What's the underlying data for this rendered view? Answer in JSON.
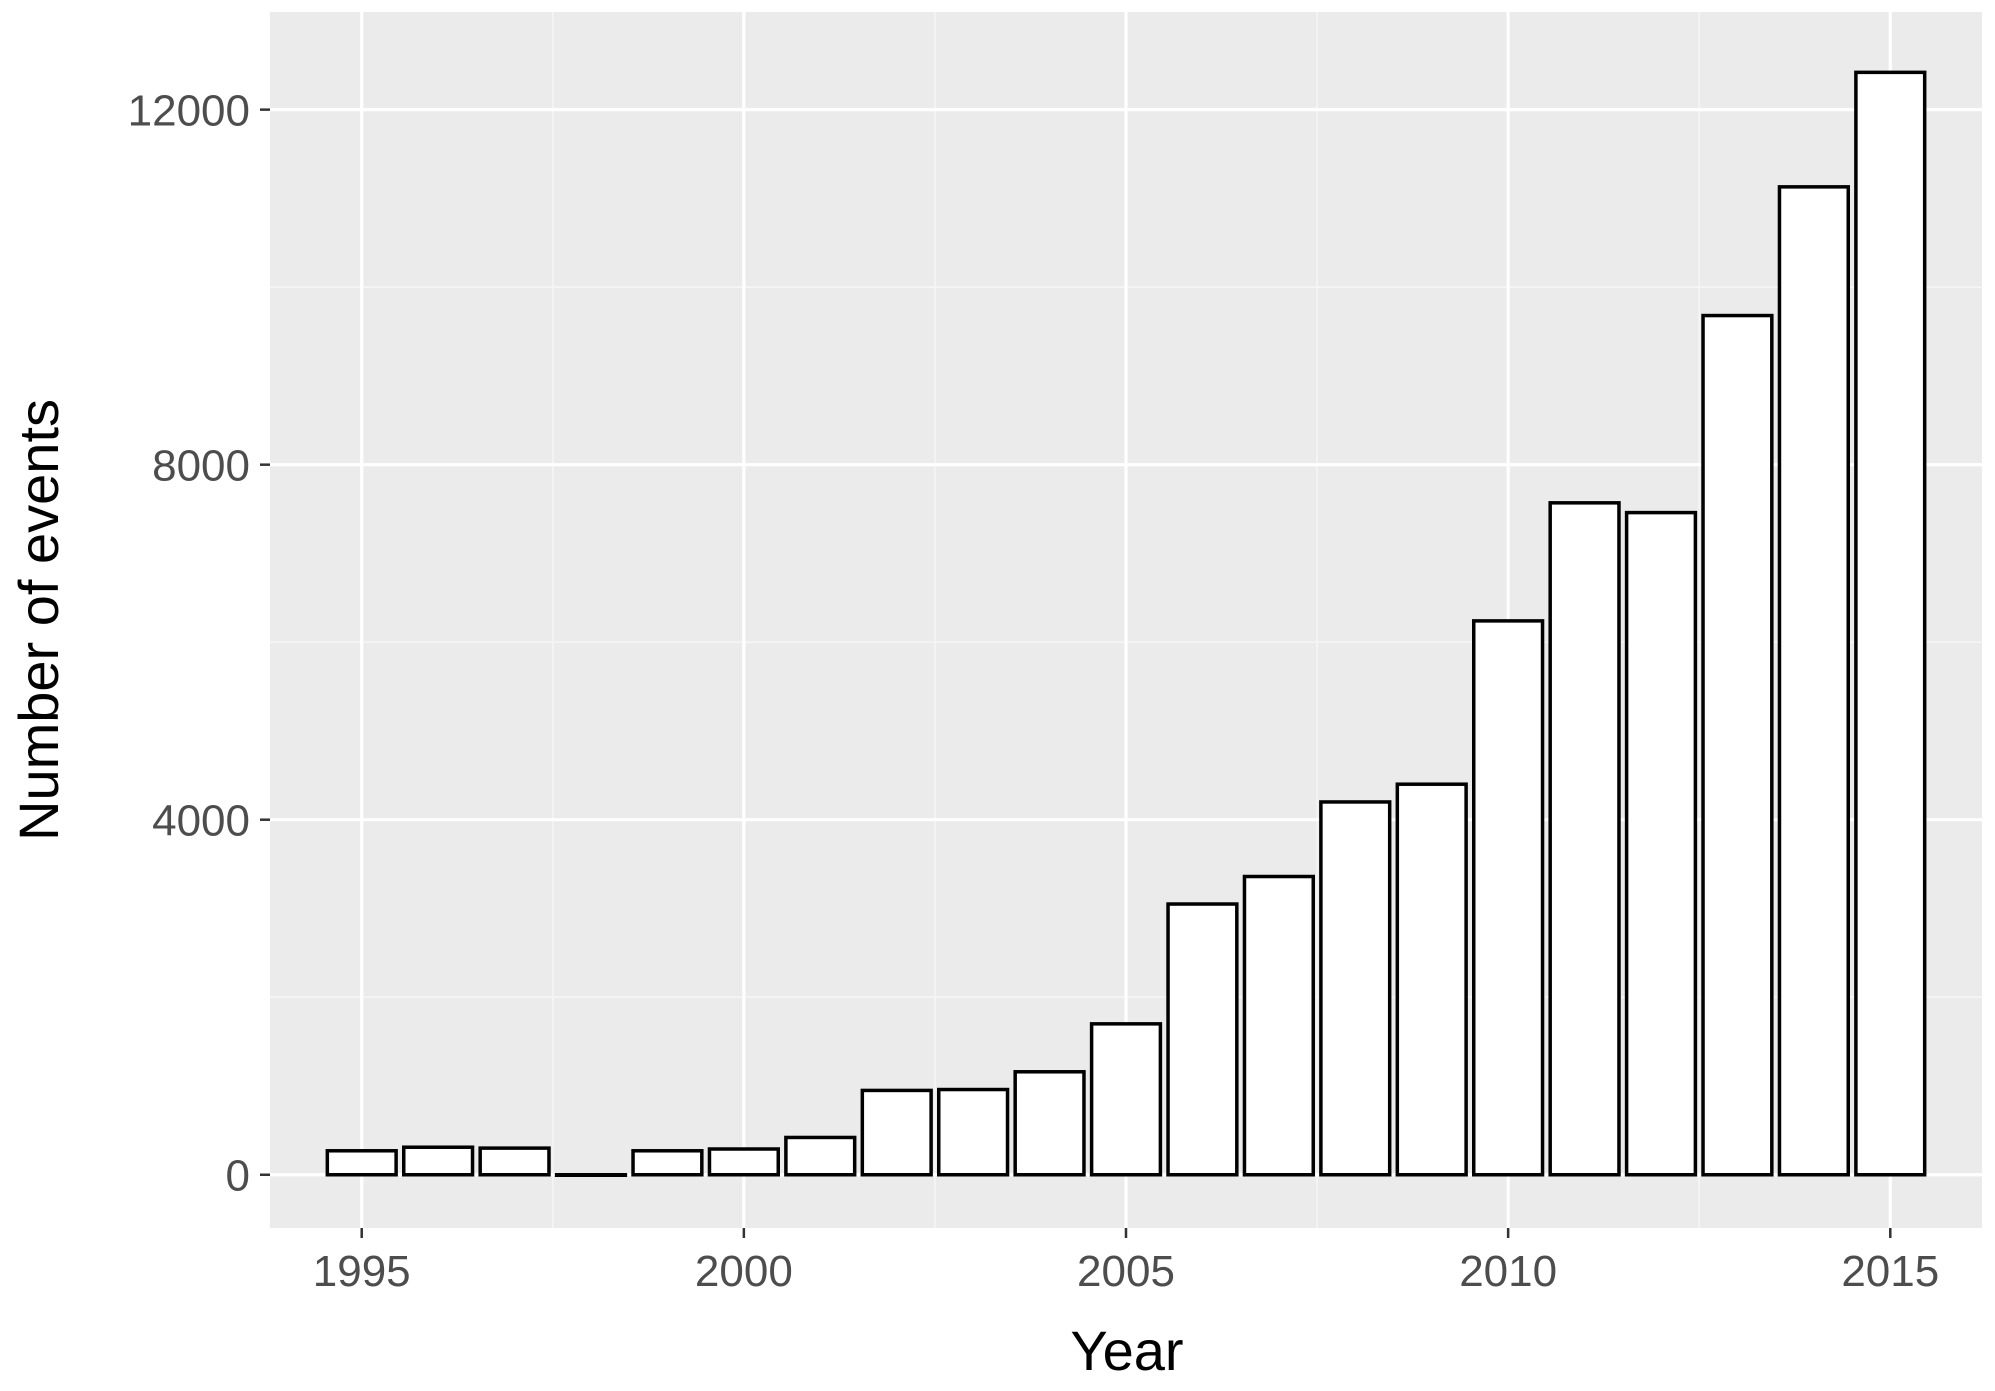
{
  "chart_data": {
    "type": "bar",
    "title": "",
    "xlabel": "Year",
    "ylabel": "Number of events",
    "x": [
      1995,
      1996,
      1997,
      1998,
      1999,
      2000,
      2001,
      2002,
      2003,
      2004,
      2005,
      2006,
      2007,
      2008,
      2009,
      2010,
      2011,
      2012,
      2013,
      2014,
      2015
    ],
    "values": [
      270,
      310,
      300,
      0,
      270,
      290,
      420,
      950,
      960,
      1160,
      1700,
      3050,
      3360,
      4200,
      4400,
      6240,
      7570,
      7460,
      9680,
      11130,
      12420
    ],
    "xlim": [
      1994.26,
      1996.3
    ],
    "x_range": [
      1993.8,
      2016.2
    ],
    "ylim": [
      -600,
      13100
    ],
    "x_ticks": [
      1995,
      2000,
      2005,
      2010,
      2015
    ],
    "x_tick_labels": [
      "1995",
      "2000",
      "2005",
      "2010",
      "2015"
    ],
    "y_ticks": [
      0,
      4000,
      8000,
      12000
    ],
    "y_tick_labels": [
      "0",
      "4000",
      "8000",
      "12000"
    ],
    "grid": true,
    "legend": "none",
    "colors": {
      "panel_background": "#ebebeb",
      "grid_major": "#ffffff",
      "grid_minor": "#f5f5f5",
      "bar_fill": "#ffffff",
      "bar_outline": "#000000",
      "tick_label": "#4d4d4d",
      "axis_title": "#000000"
    }
  }
}
